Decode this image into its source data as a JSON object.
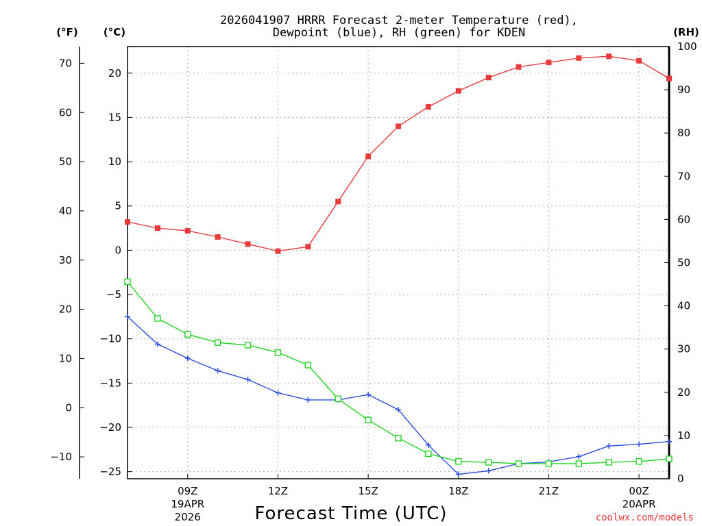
{
  "chart_data": {
    "type": "line",
    "title_line1": "2026041907 HRRR Forecast 2-meter Temperature (red),",
    "title_line2": "Dewpoint (blue), RH (green) for KDEN",
    "xlabel": "Forecast Time (UTC)",
    "credit": "coolwx.com/models",
    "unit_labels": {
      "fahrenheit": "(°F)",
      "celsius": "(°C)",
      "rh": "(RH)"
    },
    "x": [
      7,
      8,
      9,
      10,
      11,
      12,
      13,
      14,
      15,
      16,
      17,
      18,
      19,
      20,
      21,
      22,
      23,
      24,
      25
    ],
    "xlim": [
      7,
      25
    ],
    "x_ticks": [
      {
        "x": 9,
        "lines": [
          "09Z",
          "19APR",
          "2026"
        ]
      },
      {
        "x": 12,
        "lines": [
          "12Z"
        ]
      },
      {
        "x": 15,
        "lines": [
          "15Z"
        ]
      },
      {
        "x": 18,
        "lines": [
          "18Z"
        ]
      },
      {
        "x": 21,
        "lines": [
          "21Z"
        ]
      },
      {
        "x": 24,
        "lines": [
          "00Z",
          "20APR"
        ]
      }
    ],
    "celsius_axis": {
      "ylim": [
        -25.8,
        23
      ],
      "ticks": [
        20,
        15,
        10,
        5,
        0,
        -5,
        -10,
        -15,
        -20,
        -25
      ],
      "tick_labels": [
        "20",
        "15",
        "10",
        "5",
        "0",
        "−5",
        "−10",
        "−15",
        "−20",
        "−25"
      ]
    },
    "fahrenheit_axis": {
      "ticks": [
        70,
        60,
        50,
        40,
        30,
        20,
        10,
        0,
        -10
      ],
      "tick_labels": [
        "70",
        "60",
        "50",
        "40",
        "30",
        "20",
        "10",
        "0",
        "−10"
      ]
    },
    "rh_axis": {
      "ylim": [
        0,
        100
      ],
      "ticks": [
        100,
        90,
        80,
        70,
        60,
        50,
        40,
        30,
        20,
        10,
        0
      ],
      "tick_labels": [
        "100",
        "90",
        "80",
        "70",
        "60",
        "50",
        "40",
        "30",
        "20",
        "10",
        "0"
      ]
    },
    "series": [
      {
        "name": "Temperature",
        "unit": "C",
        "color": "#e83b3b",
        "marker": "filled-square",
        "values": [
          3.2,
          2.5,
          2.2,
          1.5,
          0.7,
          -0.1,
          0.4,
          5.5,
          10.6,
          14.0,
          16.2,
          18.0,
          19.5,
          20.7,
          21.2,
          21.7,
          21.9,
          21.4,
          19.4
        ]
      },
      {
        "name": "Dewpoint",
        "unit": "C",
        "color": "#2c4ce0",
        "marker": "plus",
        "values": [
          -7.5,
          -10.6,
          -12.2,
          -13.6,
          -14.6,
          -16.1,
          -16.9,
          -16.9,
          -16.3,
          -18.0,
          -22.0,
          -25.3,
          -24.9,
          -24.1,
          -23.9,
          -23.3,
          -22.1,
          -21.9,
          -21.6
        ]
      },
      {
        "name": "RH",
        "unit": "%",
        "color": "#22d322",
        "marker": "open-square",
        "values": [
          45.6,
          37.1,
          33.4,
          31.5,
          30.9,
          29.2,
          26.3,
          18.5,
          13.6,
          9.4,
          5.8,
          4.0,
          3.8,
          3.5,
          3.5,
          3.5,
          3.8,
          4.0,
          4.6
        ]
      }
    ]
  }
}
